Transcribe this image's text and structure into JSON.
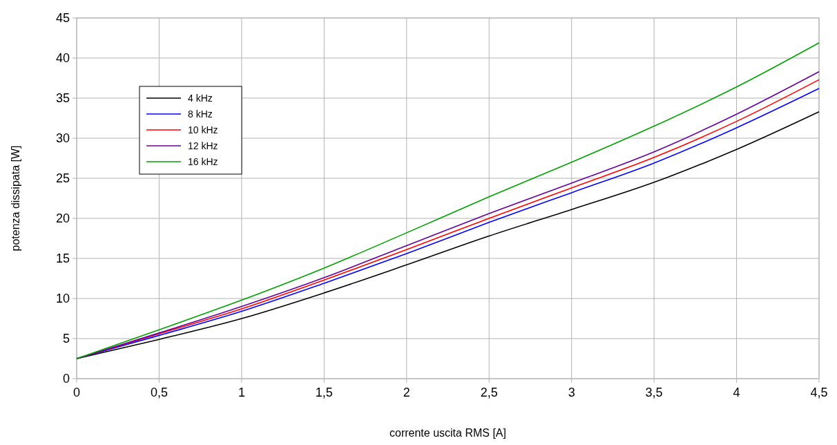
{
  "chart_data": {
    "type": "line",
    "xlabel": "corrente uscita RMS [A]",
    "ylabel": "potenza dissipata [W]",
    "x": [
      0,
      0.5,
      1,
      1.5,
      2,
      2.5,
      3,
      3.5,
      4,
      4.5
    ],
    "series": [
      {
        "name": "4 kHz",
        "color": "#000000",
        "values": [
          2.5,
          4.9,
          7.5,
          10.7,
          14.2,
          17.8,
          21.1,
          24.5,
          28.6,
          33.3
        ]
      },
      {
        "name": "8 kHz",
        "color": "#0000ff",
        "values": [
          2.5,
          5.4,
          8.4,
          11.9,
          15.6,
          19.5,
          23.2,
          26.9,
          31.3,
          36.2
        ]
      },
      {
        "name": "10 kHz",
        "color": "#ff0000",
        "values": [
          2.5,
          5.6,
          8.7,
          12.3,
          16.1,
          20.0,
          23.8,
          27.6,
          32.1,
          37.3
        ]
      },
      {
        "name": "12 kHz",
        "color": "#660099",
        "values": [
          2.5,
          5.7,
          9.0,
          12.6,
          16.6,
          20.6,
          24.4,
          28.3,
          33.0,
          38.3
        ]
      },
      {
        "name": "16 kHz",
        "color": "#00a000",
        "values": [
          2.5,
          6.1,
          9.8,
          13.8,
          18.2,
          22.7,
          27.0,
          31.5,
          36.4,
          41.9
        ]
      }
    ],
    "xlim": [
      0,
      4.5
    ],
    "xticks": [
      0,
      {
        "value": 0.5,
        "label": "0,5"
      },
      1,
      {
        "value": 1.5,
        "label": "1,5"
      },
      2,
      {
        "value": 2.5,
        "label": "2,5"
      },
      3,
      {
        "value": 3.5,
        "label": "3,5"
      },
      4,
      {
        "value": 4.5,
        "label": "4,5"
      }
    ],
    "ylim": [
      0,
      45
    ],
    "yticks": [
      0,
      5,
      10,
      15,
      20,
      25,
      30,
      35,
      40,
      45
    ],
    "grid": true,
    "legend": "top left",
    "marker": "none",
    "line_style": "solid"
  }
}
